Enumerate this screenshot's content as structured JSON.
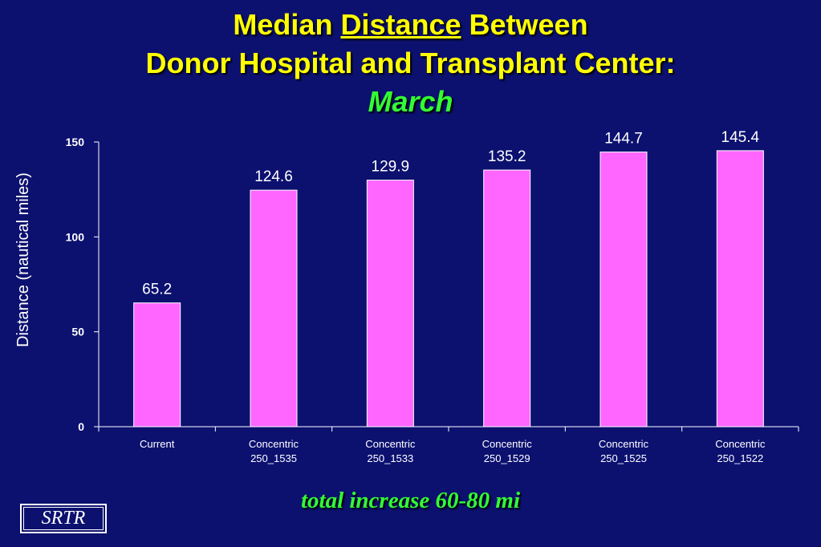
{
  "title": {
    "line1_before": "Median ",
    "line1_underlined": "Distance",
    "line1_after": " Between",
    "line2": "Donor Hospital and Transplant Center:",
    "line3": "March"
  },
  "chart_data": {
    "type": "bar",
    "categories": [
      [
        "Current"
      ],
      [
        "Concentric",
        "250_1535"
      ],
      [
        "Concentric",
        "250_1533"
      ],
      [
        "Concentric",
        "250_1529"
      ],
      [
        "Concentric",
        "250_1525"
      ],
      [
        "Concentric",
        "250_1522"
      ]
    ],
    "values": [
      65.2,
      124.6,
      129.9,
      135.2,
      144.7,
      145.4
    ],
    "value_labels": [
      "65.2",
      "124.6",
      "129.9",
      "135.2",
      "144.7",
      "145.4"
    ],
    "ylabel": "Distance (nautical miles)",
    "ylim": [
      0,
      150
    ],
    "yticks": [
      0,
      50,
      100,
      150
    ],
    "grid": false,
    "bar_color": "#ff66ff"
  },
  "footnote": "total increase 60-80 mi",
  "logo": "SRTR",
  "colors": {
    "background": "#0c1170",
    "title": "#ffff00",
    "subtitle": "#33ff33",
    "axis": "#ffffff"
  }
}
